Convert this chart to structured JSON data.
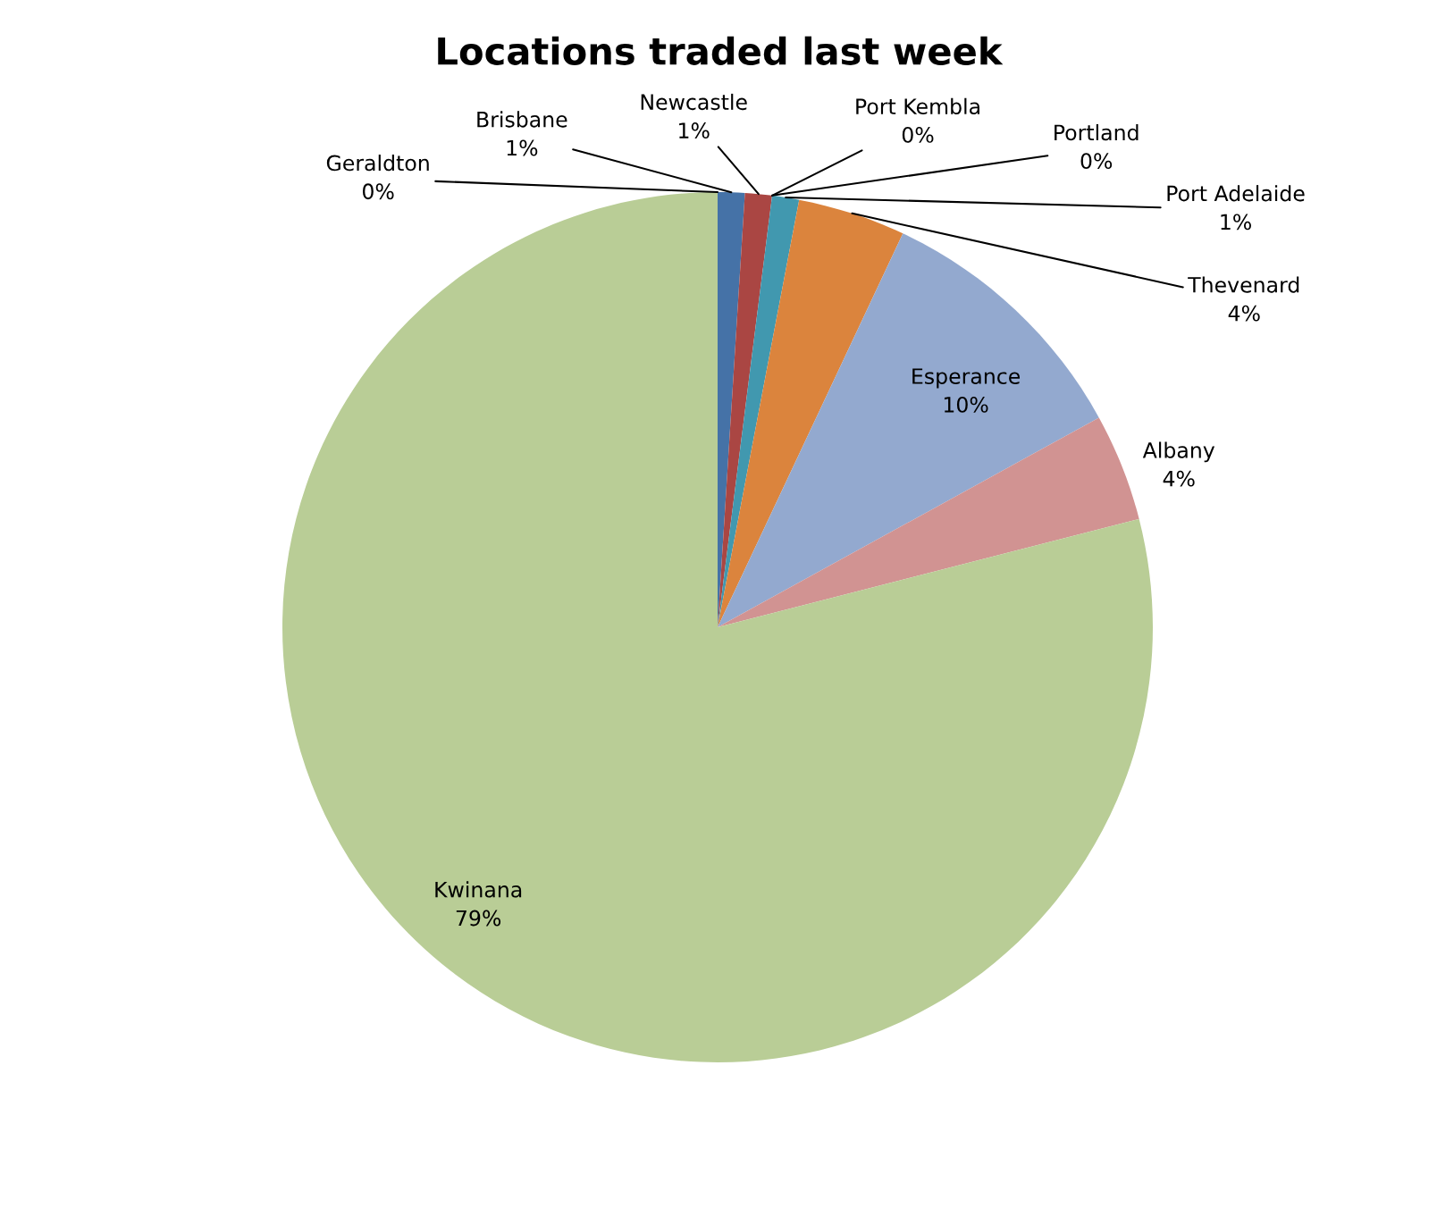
{
  "chart_data": {
    "type": "pie",
    "title": "Locations traded last week",
    "categories": [
      "Brisbane",
      "Newcastle",
      "Port Kembla",
      "Portland",
      "Port Adelaide",
      "Thevenard",
      "Esperance",
      "Albany",
      "Kwinana",
      "Geraldton"
    ],
    "values": [
      1,
      1,
      0,
      0,
      1,
      4,
      10,
      4,
      79,
      0
    ],
    "value_labels": [
      "1%",
      "1%",
      "0%",
      "0%",
      "1%",
      "4%",
      "10%",
      "4%",
      "79%",
      "0%"
    ],
    "colors": [
      "#4572a7",
      "#aa4643",
      "#89a54e",
      "#71588f",
      "#4198af",
      "#db843d",
      "#93a9cf",
      "#d19392",
      "#b9cd96",
      "#a99bbd"
    ]
  }
}
